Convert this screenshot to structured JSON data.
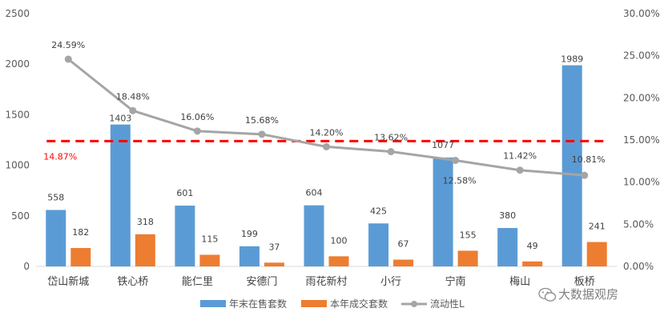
{
  "chart_data": {
    "type": "bar",
    "categories": [
      "岱山新城",
      "铁心桥",
      "能仁里",
      "安德门",
      "雨花新村",
      "小行",
      "宁南",
      "梅山",
      "板桥"
    ],
    "series": [
      {
        "name": "年末在售套数",
        "type": "bar",
        "axis": "left",
        "color": "#5B9BD5",
        "values": [
          558,
          1403,
          601,
          199,
          604,
          425,
          1077,
          380,
          1989
        ],
        "labels": [
          "558",
          "1403",
          "601",
          "199",
          "604",
          "425",
          "1077",
          "380",
          "1989"
        ]
      },
      {
        "name": "本年成交套数",
        "type": "bar",
        "axis": "left",
        "color": "#ED7D31",
        "values": [
          182,
          318,
          115,
          37,
          100,
          67,
          155,
          49,
          241
        ],
        "labels": [
          "182",
          "318",
          "115",
          "37",
          "100",
          "67",
          "155",
          "49",
          "241"
        ]
      },
      {
        "name": "流动性L",
        "type": "line",
        "axis": "right",
        "color": "#A5A5A5",
        "values": [
          24.59,
          18.48,
          16.06,
          15.68,
          14.2,
          13.62,
          12.58,
          11.42,
          10.81
        ],
        "labels": [
          "24.59%",
          "18.48%",
          "16.06%",
          "15.68%",
          "14.20%",
          "13.62%",
          "12.58%",
          "11.42%",
          "10.81%"
        ]
      }
    ],
    "reference_line": {
      "value": 14.87,
      "label": "14.87%",
      "color": "#FF0000",
      "axis": "right",
      "style": "dashed"
    },
    "y_left": {
      "ylim": [
        0,
        2500
      ],
      "ticks": [
        "0",
        "500",
        "1000",
        "1500",
        "2000",
        "2500"
      ]
    },
    "y_right": {
      "ylim": [
        0,
        30
      ],
      "ticks": [
        "0.00%",
        "5.00%",
        "10.00%",
        "15.00%",
        "20.00%",
        "25.00%",
        "30.00%"
      ]
    },
    "grid": false,
    "legend_position": "bottom"
  },
  "watermark": "大数据观房",
  "watermark_icon": "wechat-icon"
}
